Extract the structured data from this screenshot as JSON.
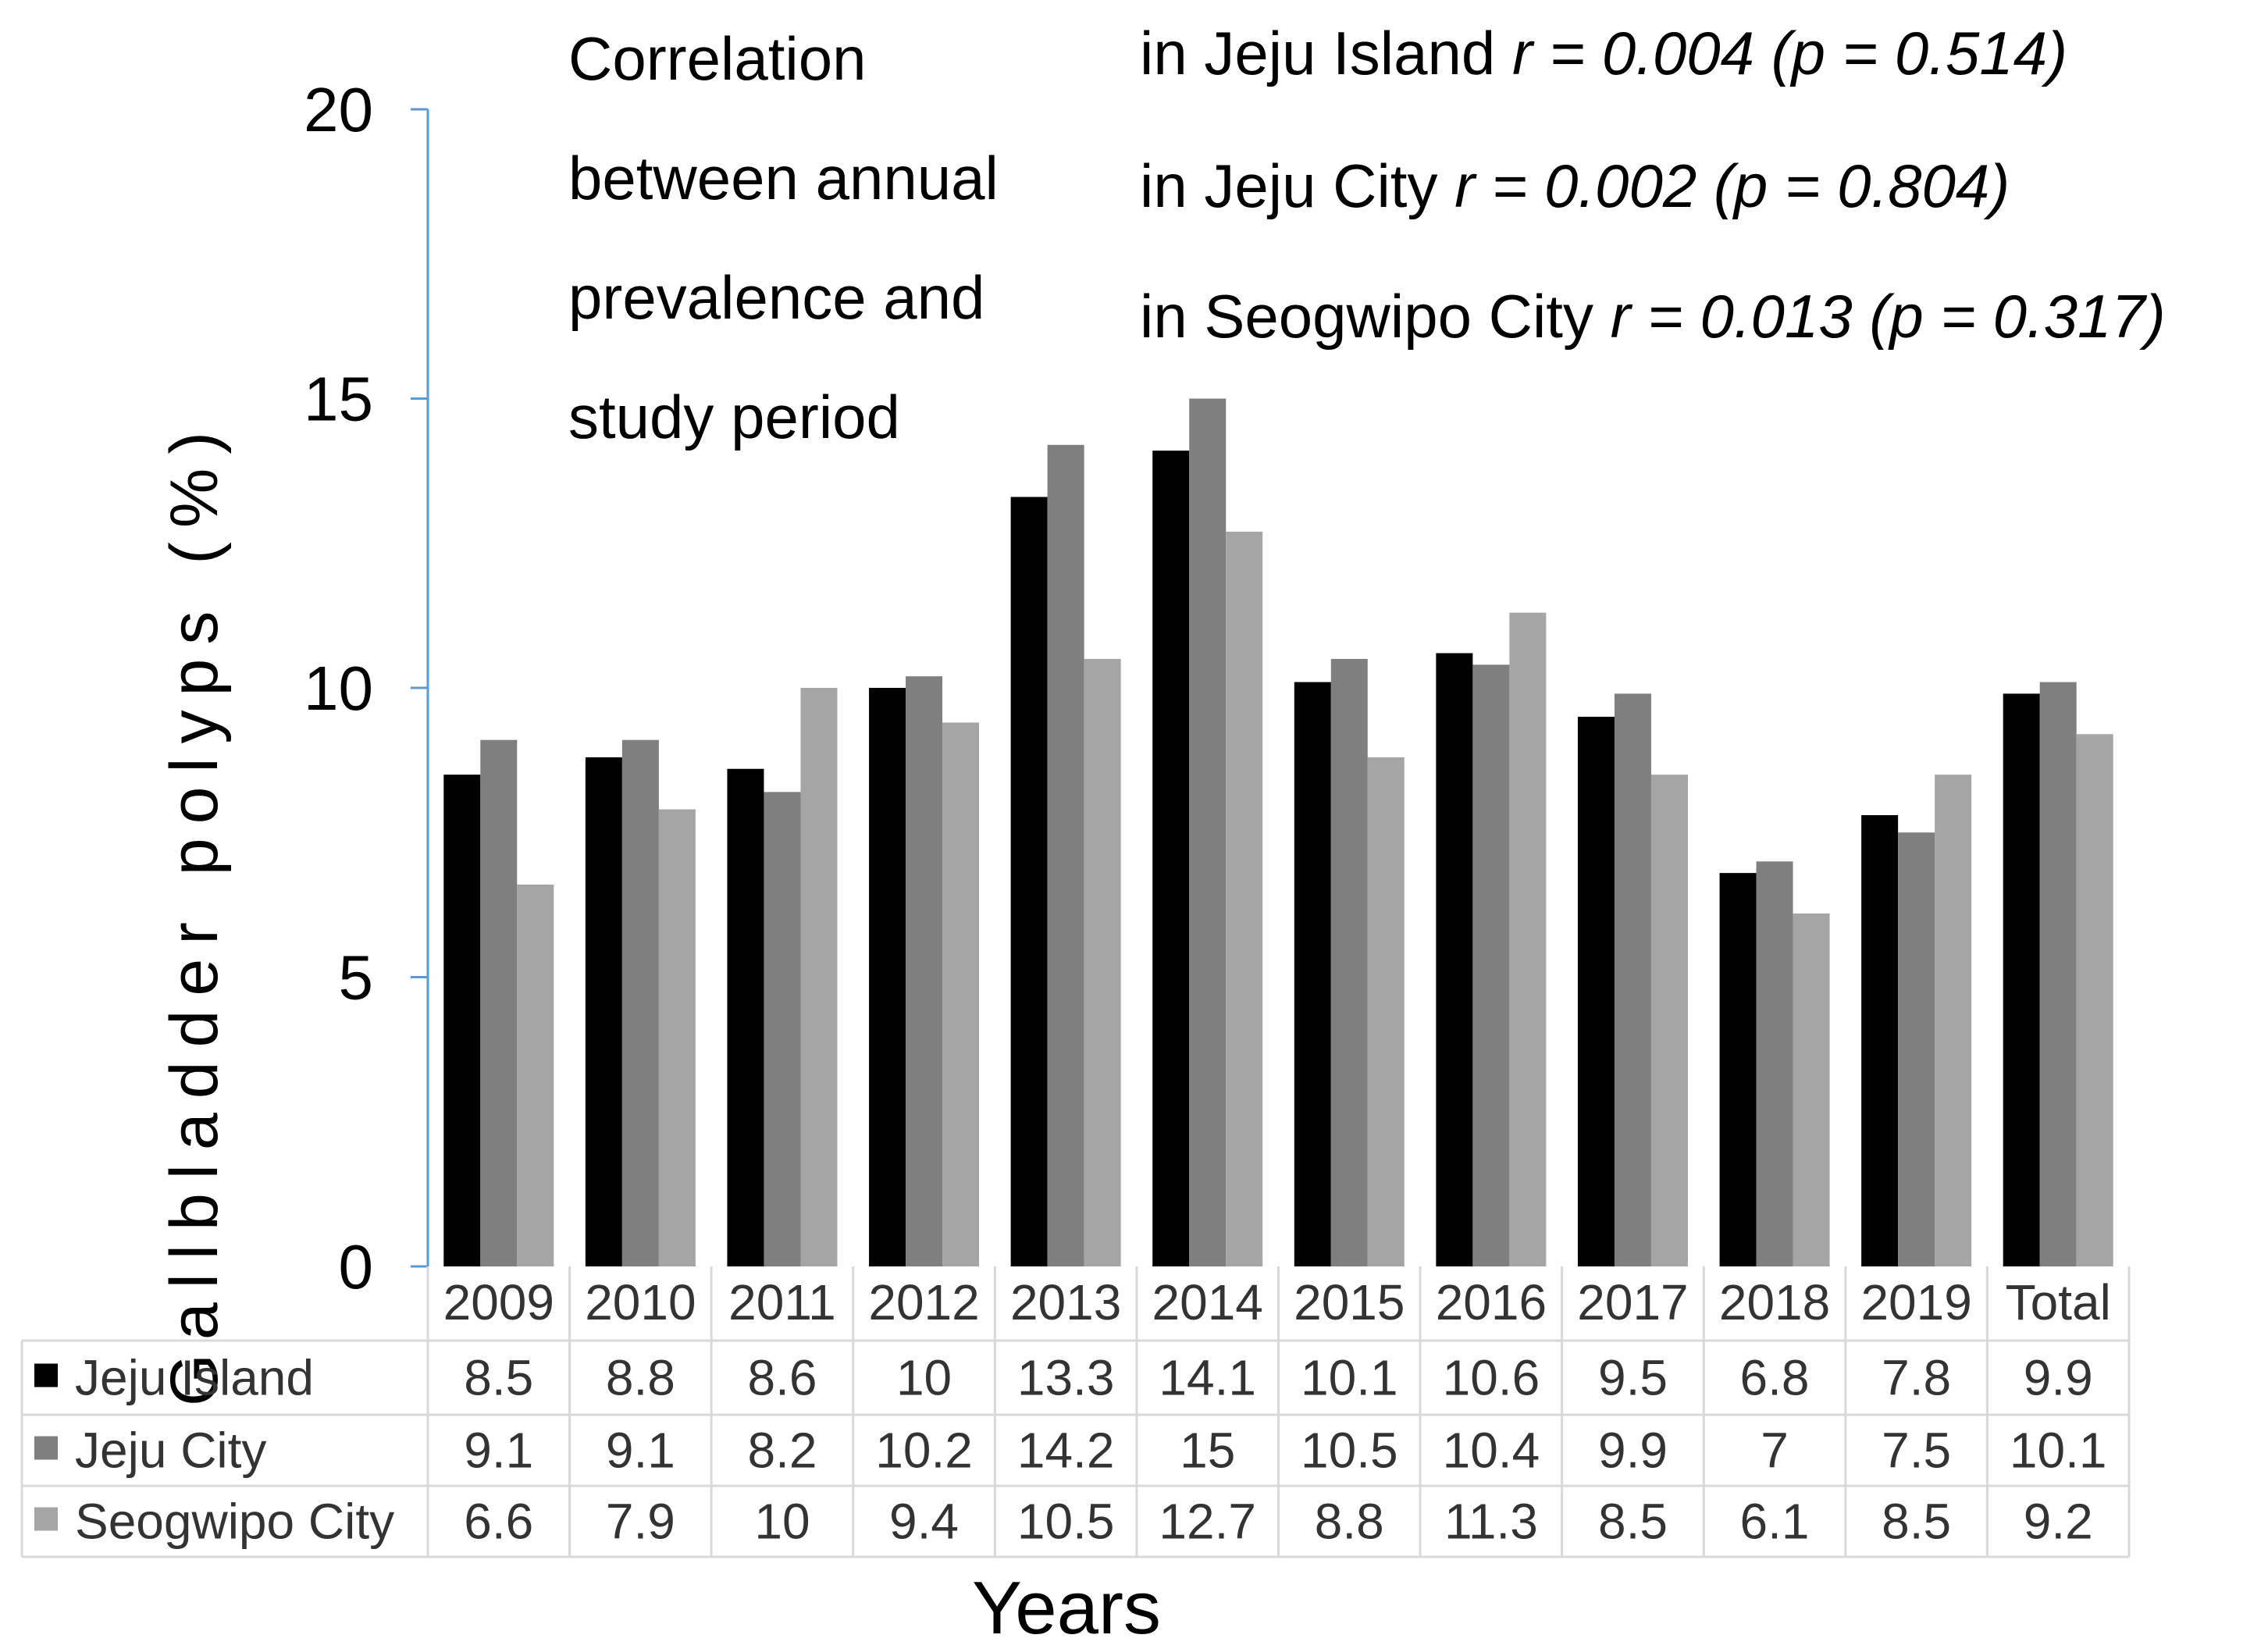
{
  "chart_data": {
    "type": "bar",
    "categories": [
      "2009",
      "2010",
      "2011",
      "2012",
      "2013",
      "2014",
      "2015",
      "2016",
      "2017",
      "2018",
      "2019",
      "Total"
    ],
    "series": [
      {
        "name": "Jeju Island",
        "color": "#000000",
        "values": [
          8.5,
          8.8,
          8.6,
          10,
          13.3,
          14.1,
          10.1,
          10.6,
          9.5,
          6.8,
          7.8,
          9.9
        ]
      },
      {
        "name": "Jeju City",
        "color": "#7f7f7f",
        "values": [
          9.1,
          9.1,
          8.2,
          10.2,
          14.2,
          15,
          10.5,
          10.4,
          9.9,
          7,
          7.5,
          10.1
        ]
      },
      {
        "name": "Seogwipo City",
        "color": "#a5a5a5",
        "values": [
          6.6,
          7.9,
          10,
          9.4,
          10.5,
          12.7,
          8.8,
          11.3,
          8.5,
          6.1,
          8.5,
          9.2
        ]
      }
    ],
    "table_values": [
      [
        "8.5",
        "8.8",
        "8.6",
        "10",
        "13.3",
        "14.1",
        "10.1",
        "10.6",
        "9.5",
        "6.8",
        "7.8",
        "9.9"
      ],
      [
        "9.1",
        "9.1",
        "8.2",
        "10.2",
        "14.2",
        "15",
        "10.5",
        "10.4",
        "9.9",
        "7",
        "7.5",
        "10.1"
      ],
      [
        "6.6",
        "7.9",
        "10",
        "9.4",
        "10.5",
        "12.7",
        "8.8",
        "11.3",
        "8.5",
        "6.1",
        "8.5",
        "9.2"
      ]
    ],
    "ylabel": "Gallbladder polyps (%)",
    "xlabel": "Years",
    "ylim": [
      0,
      20
    ],
    "yticks": [
      "0",
      "5",
      "10",
      "15",
      "20"
    ],
    "annotation": {
      "lines": [
        "Correlation",
        "between annual",
        "prevalence and",
        "study period"
      ],
      "stats": [
        {
          "label": "in Jeju Island ",
          "r": "r = 0.004 (p = 0.514)"
        },
        {
          "label": "in Jeju City ",
          "r": "r = 0.002 (p = 0.804)"
        },
        {
          "label": "in Seogwipo City ",
          "r": "r = 0.013 (p = 0.317)"
        }
      ]
    },
    "axis_color": "#5b9bd5",
    "grid_color": "#d9d9d9"
  }
}
